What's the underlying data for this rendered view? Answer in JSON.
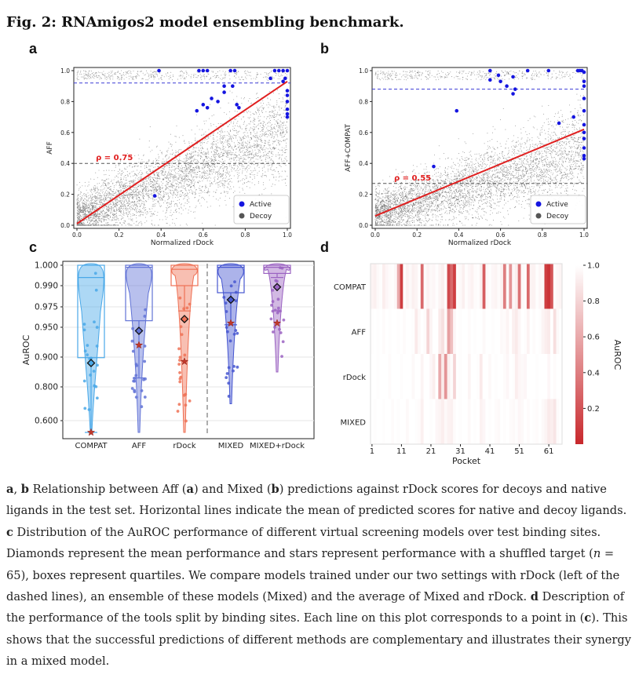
{
  "figure": {
    "title": "Fig. 2: RNAmigos2 model ensembling benchmark.",
    "panel_letters": {
      "a": "a",
      "b": "b",
      "c": "c",
      "d": "d"
    }
  },
  "chart_data": [
    {
      "panel": "a",
      "type": "scatter",
      "xlabel": "Normalized rDock",
      "ylabel": "AFF",
      "xlim": [
        0.0,
        1.0
      ],
      "ylim": [
        0.0,
        1.0
      ],
      "xticks": [
        "0.0",
        "0.2",
        "0.4",
        "0.6",
        "0.8",
        "1.0"
      ],
      "yticks": [
        "0.0",
        "0.2",
        "0.4",
        "0.6",
        "0.8",
        "1.0"
      ],
      "correlation_label": "ρ = 0.75",
      "regression_line": {
        "x": [
          0.0,
          1.0
        ],
        "y": [
          0.01,
          0.93
        ]
      },
      "hlines": [
        {
          "y": 0.92,
          "color": "#3b3bd6"
        },
        {
          "y": 0.4,
          "color": "#555555"
        }
      ],
      "legend": {
        "position": "bottom-right",
        "entries": [
          "Active",
          "Decoy"
        ]
      },
      "colors": {
        "active": "#1515e0",
        "decoy": "#555555",
        "fit": "#e02020"
      },
      "active_points": {
        "x": [
          0.39,
          0.58,
          0.6,
          0.62,
          0.64,
          0.67,
          0.7,
          0.73,
          0.75,
          0.6,
          0.57,
          0.62,
          0.74,
          0.76,
          0.92,
          0.94,
          0.96,
          0.98,
          1.0,
          0.98,
          0.99,
          1.0,
          1.0,
          1.0,
          1.0,
          1.0,
          1.0,
          0.37,
          0.7,
          0.77
        ],
        "y": [
          1.0,
          1.0,
          1.0,
          1.0,
          0.82,
          0.8,
          0.9,
          1.0,
          1.0,
          0.78,
          0.74,
          0.76,
          0.9,
          0.78,
          0.95,
          1.0,
          1.0,
          1.0,
          1.0,
          0.93,
          0.95,
          0.87,
          0.84,
          0.8,
          0.75,
          0.72,
          0.7,
          0.19,
          0.86,
          0.76
        ]
      }
    },
    {
      "panel": "b",
      "type": "scatter",
      "xlabel": "Normalized rDock",
      "ylabel": "AFF+COMPAT",
      "xlim": [
        0.0,
        1.0
      ],
      "ylim": [
        0.0,
        1.0
      ],
      "xticks": [
        "0.0",
        "0.2",
        "0.4",
        "0.6",
        "0.8",
        "1.0"
      ],
      "yticks": [
        "0.0",
        "0.2",
        "0.4",
        "0.6",
        "0.8",
        "1.0"
      ],
      "correlation_label": "ρ = 0.55",
      "regression_line": {
        "x": [
          0.0,
          1.0
        ],
        "y": [
          0.06,
          0.62
        ]
      },
      "hlines": [
        {
          "y": 0.88,
          "color": "#3b3bd6"
        },
        {
          "y": 0.27,
          "color": "#555555"
        }
      ],
      "legend": {
        "position": "bottom-right",
        "entries": [
          "Active",
          "Decoy"
        ]
      },
      "colors": {
        "active": "#1515e0",
        "decoy": "#555555",
        "fit": "#e02020"
      },
      "active_points": {
        "x": [
          0.55,
          0.6,
          0.66,
          0.67,
          0.63,
          0.59,
          0.66,
          0.73,
          0.83,
          0.88,
          0.95,
          0.97,
          0.98,
          1.0,
          1.0,
          1.0,
          1.0,
          1.0,
          1.0,
          1.0,
          1.0,
          1.0,
          1.0,
          1.0,
          0.28,
          0.39,
          0.55,
          0.99
        ],
        "y": [
          1.0,
          0.93,
          0.96,
          0.88,
          0.9,
          0.97,
          0.85,
          1.0,
          1.0,
          0.66,
          0.7,
          1.0,
          1.0,
          0.99,
          0.93,
          0.9,
          0.82,
          0.74,
          0.65,
          0.6,
          0.56,
          0.5,
          0.45,
          0.43,
          0.38,
          0.74,
          0.94,
          1.0
        ]
      }
    },
    {
      "panel": "c",
      "type": "violin",
      "ylabel": "AuROC",
      "yticks": [
        "0.600",
        "0.800",
        "0.900",
        "0.950",
        "0.975",
        "0.990",
        "1.000"
      ],
      "categories": [
        "COMPAT",
        "AFF",
        "rDock",
        "MIXED",
        "MIXED+rDock"
      ],
      "series_colors": [
        "#49a8e8",
        "#6273d6",
        "#ef7155",
        "#4656d0",
        "#9b63c2"
      ],
      "box": {
        "q1": [
          0.898,
          0.958,
          0.99,
          0.985,
          0.996
        ],
        "median": [
          0.994,
          0.999,
          0.998,
          0.999,
          0.999
        ],
        "q3": [
          1.0,
          1.0,
          1.0,
          1.0,
          1.0
        ],
        "whisker_low": [
          0.5,
          0.83,
          0.97,
          0.953,
          0.994
        ]
      },
      "mean_performance": [
        0.88,
        0.944,
        0.96,
        0.98,
        0.989
      ],
      "shuffled_target": [
        0.5,
        0.92,
        0.885,
        0.955,
        0.955
      ],
      "min": [
        0.5,
        0.5,
        0.5,
        0.7,
        0.85
      ],
      "separator": "dashed line between rDock and MIXED"
    },
    {
      "panel": "d",
      "type": "heatmap",
      "rows": [
        "COMPAT",
        "AFF",
        "rDock",
        "MIXED"
      ],
      "xlabel": "Pocket",
      "xticks": [
        "1",
        "11",
        "21",
        "31",
        "41",
        "51",
        "61"
      ],
      "colorbar_label": "AuROC",
      "colorbar_ticks": [
        "1.0",
        "0.8",
        "0.6",
        "0.4",
        "0.2"
      ],
      "num_pockets": 65,
      "colors": {
        "high": "#ffffff",
        "low": "#c8282c"
      },
      "values": {
        "COMPAT": [
          0.95,
          0.93,
          0.97,
          0.99,
          0.92,
          0.96,
          0.98,
          0.99,
          0.96,
          0.6,
          0.1,
          0.99,
          0.94,
          0.97,
          0.93,
          0.95,
          0.99,
          0.3,
          0.98,
          0.94,
          0.97,
          0.96,
          0.99,
          0.95,
          0.92,
          0.98,
          0.15,
          0.3,
          0.1,
          0.98,
          0.97,
          0.93,
          0.99,
          0.96,
          0.94,
          0.98,
          0.99,
          0.93,
          0.25,
          0.97,
          0.99,
          0.96,
          0.95,
          0.98,
          0.94,
          0.4,
          0.97,
          0.5,
          0.96,
          0.92,
          0.35,
          0.97,
          0.98,
          0.3,
          0.95,
          0.94,
          0.99,
          0.96,
          0.97,
          0.1,
          0.05,
          0.2,
          0.98,
          0.96,
          0.95
        ],
        "AFF": [
          0.99,
          1.0,
          0.99,
          1.0,
          0.98,
          1.0,
          0.99,
          1.0,
          1.0,
          0.99,
          1.0,
          0.98,
          1.0,
          1.0,
          0.99,
          0.9,
          0.97,
          1.0,
          0.98,
          0.8,
          0.95,
          1.0,
          1.0,
          0.9,
          0.85,
          0.97,
          0.55,
          0.7,
          0.96,
          1.0,
          0.99,
          1.0,
          1.0,
          0.98,
          1.0,
          0.99,
          1.0,
          1.0,
          0.97,
          1.0,
          1.0,
          0.99,
          1.0,
          1.0,
          0.97,
          0.98,
          0.95,
          1.0,
          0.93,
          0.9,
          0.96,
          1.0,
          0.99,
          0.94,
          1.0,
          0.98,
          1.0,
          0.99,
          0.95,
          0.92,
          0.9,
          1.0,
          0.85,
          0.97,
          1.0
        ],
        "rDock": [
          1.0,
          1.0,
          0.99,
          1.0,
          1.0,
          1.0,
          0.98,
          1.0,
          1.0,
          1.0,
          0.99,
          1.0,
          1.0,
          1.0,
          0.97,
          1.0,
          1.0,
          0.95,
          1.0,
          1.0,
          0.96,
          0.92,
          1.0,
          0.6,
          0.9,
          0.5,
          0.93,
          0.98,
          0.8,
          1.0,
          0.99,
          1.0,
          1.0,
          0.95,
          1.0,
          1.0,
          0.99,
          0.9,
          1.0,
          1.0,
          0.97,
          1.0,
          0.99,
          1.0,
          1.0,
          0.98,
          0.96,
          1.0,
          0.99,
          0.92,
          0.96,
          0.97,
          0.96,
          1.0,
          1.0,
          1.0,
          0.99,
          1.0,
          1.0,
          1.0,
          0.96,
          1.0,
          0.98,
          1.0,
          1.0
        ],
        "MIXED": [
          1.0,
          0.99,
          1.0,
          1.0,
          0.99,
          1.0,
          1.0,
          0.98,
          1.0,
          0.99,
          1.0,
          1.0,
          0.97,
          1.0,
          1.0,
          0.99,
          0.98,
          0.93,
          1.0,
          1.0,
          0.99,
          1.0,
          0.96,
          0.95,
          0.92,
          0.97,
          0.94,
          0.93,
          0.98,
          1.0,
          0.99,
          1.0,
          1.0,
          0.97,
          1.0,
          0.99,
          1.0,
          0.94,
          0.96,
          1.0,
          0.99,
          1.0,
          0.98,
          0.97,
          1.0,
          0.99,
          1.0,
          0.98,
          0.97,
          0.99,
          0.96,
          0.97,
          1.0,
          0.98,
          1.0,
          0.99,
          0.98,
          1.0,
          0.97,
          0.95,
          0.9,
          0.92,
          0.88,
          0.98,
          1.0
        ]
      }
    }
  ],
  "caption": {
    "segments": [
      {
        "t": "a",
        "b": true
      },
      {
        "t": ", ",
        "b": false
      },
      {
        "t": "b",
        "b": true
      },
      {
        "t": " Relationship between Aff (",
        "b": false
      },
      {
        "t": "a",
        "b": true
      },
      {
        "t": ") and Mixed (",
        "b": false
      },
      {
        "t": "b",
        "b": true
      },
      {
        "t": ") predictions against rDock scores for decoys and native ligands in the test set. Horizontal lines indicate the mean of predicted scores for native and decoy ligands. ",
        "b": false
      },
      {
        "t": "c",
        "b": true
      },
      {
        "t": " Distribution of the AuROC performance of different virtual screening models over test binding sites. Diamonds represent the mean performance and stars represent performance with a shuffled target (",
        "b": false
      },
      {
        "t": "n",
        "b": false,
        "i": true
      },
      {
        "t": " = 65), boxes represent quartiles. We compare models trained under our two settings with rDock (left of the dashed lines), an ensemble of these models (Mixed) and the average of Mixed and rDock. ",
        "b": false
      },
      {
        "t": "d",
        "b": true
      },
      {
        "t": " Description of the performance of the tools split by binding sites. Each line on this plot corresponds to a point in (",
        "b": false
      },
      {
        "t": "c",
        "b": true
      },
      {
        "t": "). This shows that the successful predictions of different methods are complementary and illustrates their synergy in a mixed model.",
        "b": false
      }
    ]
  }
}
